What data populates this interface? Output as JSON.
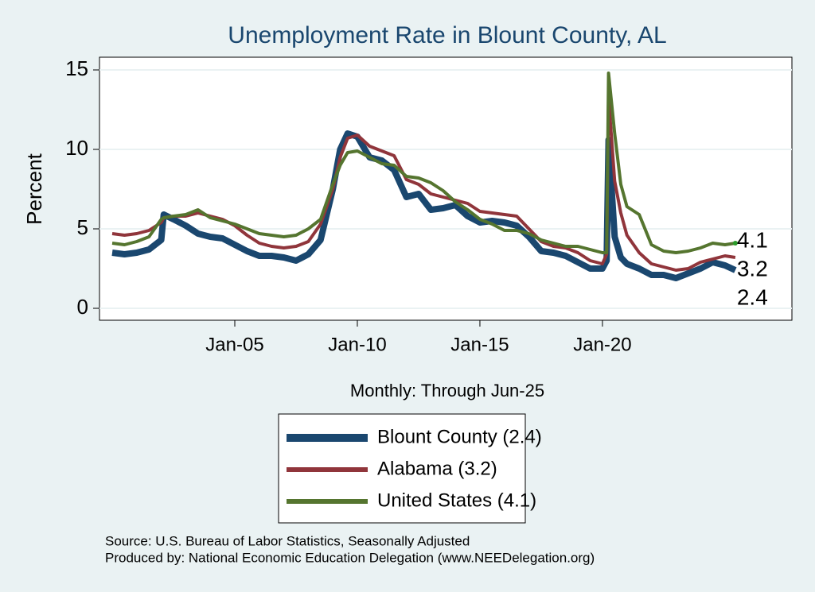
{
  "chart_data": {
    "type": "line",
    "title": "Unemployment Rate in Blount  County, AL",
    "y_label": "Percent",
    "x_label": "Monthly: Through Jun-25",
    "source": "Source: U.S. Bureau of Labor Statistics, Seasonally Adjusted",
    "producer": "Produced by: National Economic Education Delegation (www.NEEDelegation.org)",
    "x": [
      2000.0,
      2000.5,
      2001.0,
      2001.5,
      2002.0,
      2002.1,
      2002.5,
      2003.0,
      2003.5,
      2004.0,
      2004.5,
      2005.0,
      2005.5,
      2006.0,
      2006.5,
      2007.0,
      2007.5,
      2008.0,
      2008.5,
      2009.0,
      2009.3,
      2009.6,
      2010.0,
      2010.5,
      2011.0,
      2011.5,
      2012.0,
      2012.5,
      2013.0,
      2013.5,
      2014.0,
      2014.5,
      2015.0,
      2015.5,
      2016.0,
      2016.5,
      2017.0,
      2017.5,
      2018.0,
      2018.5,
      2019.0,
      2019.5,
      2020.0,
      2020.17,
      2020.25,
      2020.5,
      2020.75,
      2021.0,
      2021.5,
      2022.0,
      2022.5,
      2023.0,
      2023.5,
      2024.0,
      2024.5,
      2025.0,
      2025.42
    ],
    "series": [
      {
        "name": "Blount  County (2.4)",
        "color": "#1a476f",
        "width": 8,
        "values": [
          3.5,
          3.4,
          3.5,
          3.7,
          4.3,
          5.9,
          5.6,
          5.2,
          4.7,
          4.5,
          4.4,
          4.0,
          3.6,
          3.3,
          3.3,
          3.2,
          3.0,
          3.4,
          4.3,
          7.5,
          10.0,
          11.0,
          10.8,
          9.5,
          9.3,
          8.7,
          7.0,
          7.2,
          6.2,
          6.3,
          6.5,
          5.8,
          5.4,
          5.5,
          5.4,
          5.2,
          4.5,
          3.6,
          3.5,
          3.3,
          2.9,
          2.5,
          2.5,
          3.0,
          10.6,
          4.5,
          3.2,
          2.8,
          2.5,
          2.1,
          2.1,
          1.9,
          2.2,
          2.5,
          2.9,
          2.7,
          2.4
        ]
      },
      {
        "name": "Alabama (3.2)",
        "color": "#90353b",
        "width": 4,
        "values": [
          4.7,
          4.6,
          4.7,
          4.9,
          5.4,
          5.7,
          5.8,
          5.8,
          6.0,
          5.8,
          5.6,
          5.2,
          4.6,
          4.1,
          3.9,
          3.8,
          3.9,
          4.2,
          5.3,
          7.5,
          9.5,
          10.7,
          10.9,
          10.2,
          9.9,
          9.6,
          8.1,
          7.8,
          7.2,
          7.0,
          6.8,
          6.6,
          6.1,
          6.0,
          5.9,
          5.8,
          5.0,
          4.2,
          3.9,
          3.8,
          3.5,
          3.0,
          2.8,
          3.4,
          13.3,
          8.0,
          6.0,
          4.6,
          3.5,
          2.8,
          2.6,
          2.4,
          2.5,
          2.9,
          3.1,
          3.3,
          3.2
        ]
      },
      {
        "name": "United States (4.1)",
        "color": "#55752f",
        "width": 4,
        "end_marker": true,
        "values": [
          4.1,
          4.0,
          4.2,
          4.5,
          5.6,
          5.7,
          5.8,
          5.9,
          6.2,
          5.7,
          5.5,
          5.3,
          5.0,
          4.7,
          4.6,
          4.5,
          4.6,
          5.0,
          5.6,
          7.8,
          9.0,
          9.8,
          9.9,
          9.5,
          9.1,
          9.0,
          8.3,
          8.2,
          7.9,
          7.4,
          6.7,
          6.2,
          5.6,
          5.3,
          4.9,
          4.9,
          4.7,
          4.3,
          4.1,
          3.9,
          3.9,
          3.7,
          3.5,
          3.5,
          14.8,
          11.0,
          7.8,
          6.4,
          5.9,
          4.0,
          3.6,
          3.5,
          3.6,
          3.8,
          4.1,
          4.0,
          4.1
        ]
      }
    ],
    "xlim": [
      1999.48,
      2027.73
    ],
    "xticks": [
      {
        "value": 2005,
        "label": "Jan-05"
      },
      {
        "value": 2010,
        "label": "Jan-10"
      },
      {
        "value": 2015,
        "label": "Jan-15"
      },
      {
        "value": 2020,
        "label": "Jan-20"
      }
    ],
    "ylim": [
      -0.75,
      15.8
    ],
    "yticks": [
      0,
      5,
      10,
      15
    ],
    "grid": true
  }
}
